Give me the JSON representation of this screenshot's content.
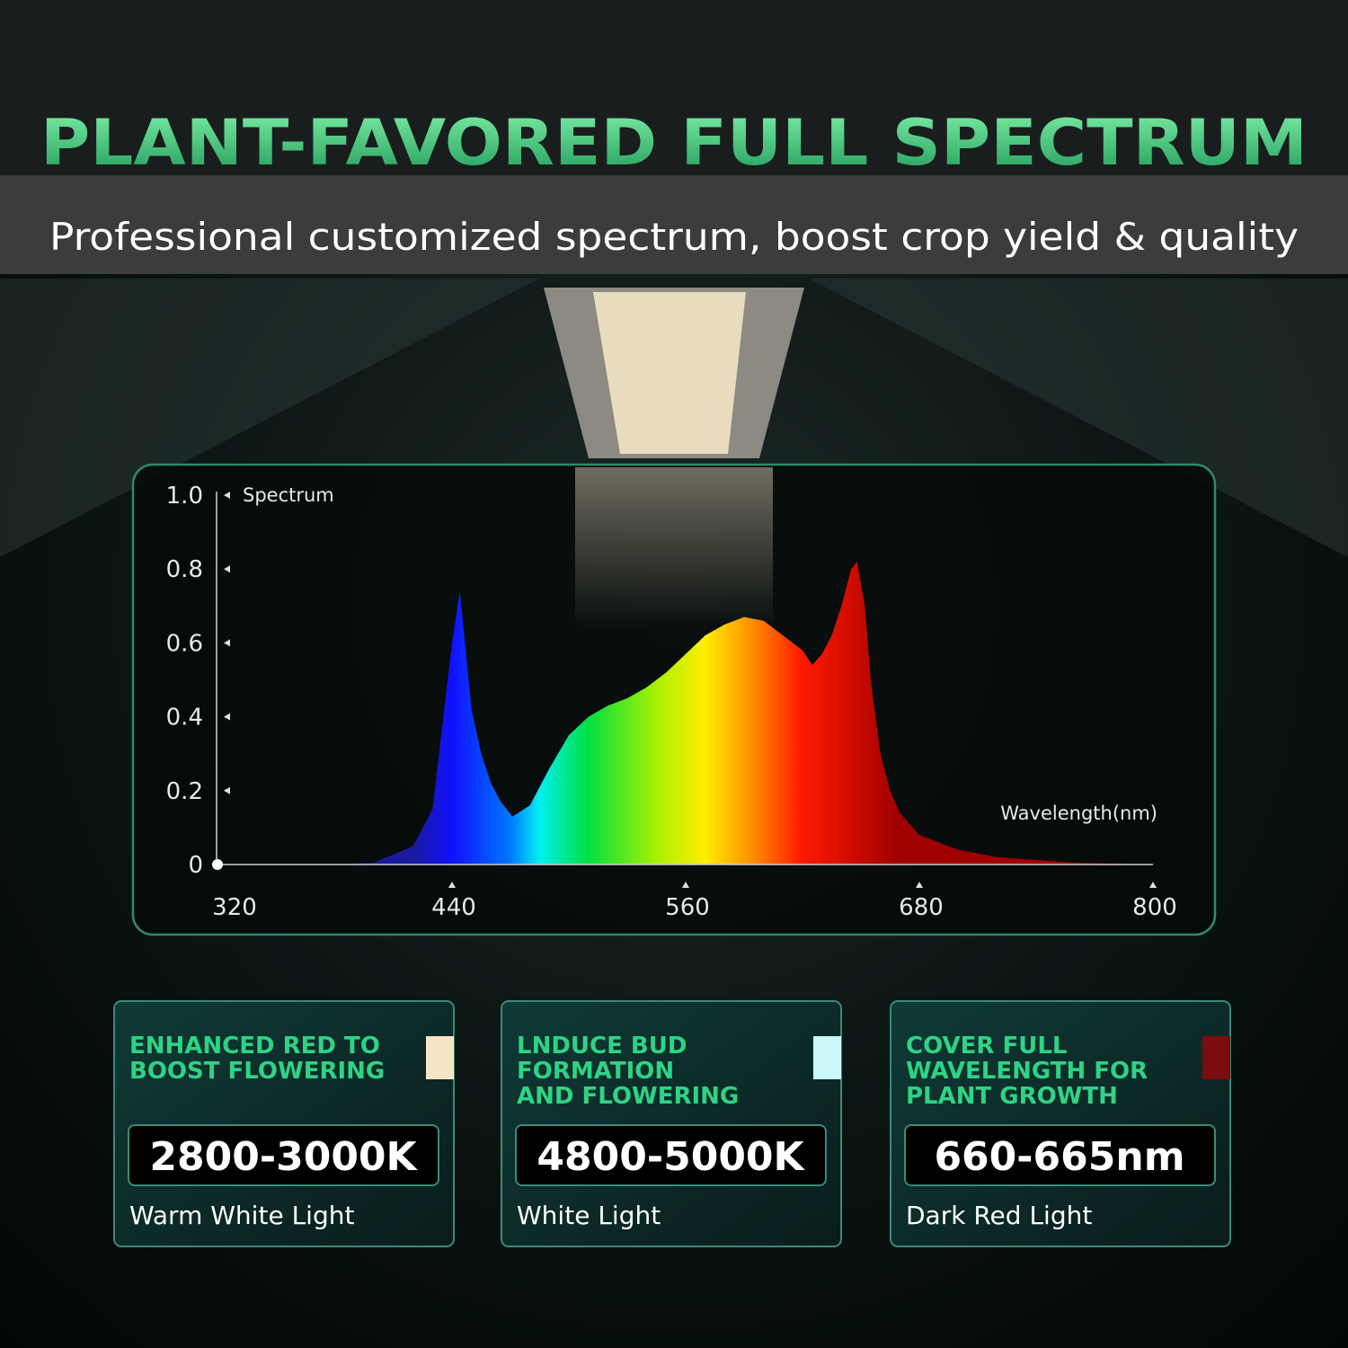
{
  "header": {
    "title": "PLANT-FAVORED FULL SPECTRUM",
    "subtitle": "Professional customized spectrum, boost crop yield & quality"
  },
  "chart_data": {
    "type": "area",
    "y_label": "Spectrum",
    "x_label": "Wavelength(nm)",
    "x": [
      380,
      400,
      420,
      430,
      440,
      444,
      450,
      455,
      460,
      465,
      471,
      480,
      490,
      500,
      510,
      520,
      530,
      540,
      550,
      560,
      570,
      580,
      590,
      600,
      610,
      620,
      625,
      630,
      635,
      640,
      645,
      648,
      652,
      655,
      660,
      665,
      670,
      680,
      700,
      720,
      760,
      800
    ],
    "values": [
      0,
      0.005,
      0.05,
      0.15,
      0.6,
      0.74,
      0.42,
      0.3,
      0.22,
      0.17,
      0.13,
      0.16,
      0.26,
      0.35,
      0.4,
      0.43,
      0.45,
      0.48,
      0.52,
      0.57,
      0.62,
      0.65,
      0.67,
      0.66,
      0.62,
      0.58,
      0.54,
      0.57,
      0.62,
      0.7,
      0.8,
      0.82,
      0.7,
      0.5,
      0.3,
      0.2,
      0.14,
      0.08,
      0.04,
      0.02,
      0.005,
      0
    ],
    "xlim": [
      320,
      800
    ],
    "ylim": [
      0,
      1
    ],
    "xticks": [
      320,
      440,
      560,
      680,
      800
    ],
    "yticks": [
      0,
      0.2,
      0.4,
      0.6,
      0.8,
      {
        "value": 1,
        "label": "1.0"
      }
    ]
  },
  "cards": [
    {
      "heading": [
        "ENHANCED RED TO",
        "BOOST FLOWERING"
      ],
      "value": "2800-3000K",
      "caption": "Warm White Light",
      "color": "#f7e6c6"
    },
    {
      "heading": [
        "LNDUCE BUD",
        "FORMATION",
        "AND FLOWERING"
      ],
      "value": "4800-5000K",
      "caption": "White Light",
      "color": "#c9f7fb"
    },
    {
      "heading": [
        "COVER FULL",
        "WAVELENGTH FOR",
        "PLANT GROWTH"
      ],
      "value": "660-665nm",
      "caption": "Dark Red Light",
      "color": "#7a0d0d"
    }
  ]
}
